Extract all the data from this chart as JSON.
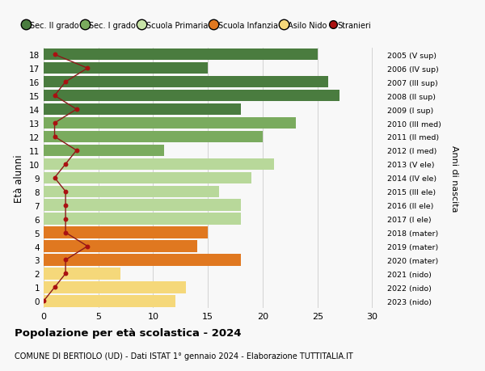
{
  "ages": [
    18,
    17,
    16,
    15,
    14,
    13,
    12,
    11,
    10,
    9,
    8,
    7,
    6,
    5,
    4,
    3,
    2,
    1,
    0
  ],
  "right_labels": [
    "2005 (V sup)",
    "2006 (IV sup)",
    "2007 (III sup)",
    "2008 (II sup)",
    "2009 (I sup)",
    "2010 (III med)",
    "2011 (II med)",
    "2012 (I med)",
    "2013 (V ele)",
    "2014 (IV ele)",
    "2015 (III ele)",
    "2016 (II ele)",
    "2017 (I ele)",
    "2018 (mater)",
    "2019 (mater)",
    "2020 (mater)",
    "2021 (nido)",
    "2022 (nido)",
    "2023 (nido)"
  ],
  "bar_values": [
    25,
    15,
    26,
    27,
    18,
    23,
    20,
    11,
    21,
    19,
    16,
    18,
    18,
    15,
    14,
    18,
    7,
    13,
    12
  ],
  "bar_colors": [
    "#4a7c3f",
    "#4a7c3f",
    "#4a7c3f",
    "#4a7c3f",
    "#4a7c3f",
    "#7aab5e",
    "#7aab5e",
    "#7aab5e",
    "#b8d89a",
    "#b8d89a",
    "#b8d89a",
    "#b8d89a",
    "#b8d89a",
    "#e07820",
    "#e07820",
    "#e07820",
    "#f5d87a",
    "#f5d87a",
    "#f5d87a"
  ],
  "stranieri_values": [
    1,
    4,
    2,
    1,
    3,
    1,
    1,
    3,
    2,
    1,
    2,
    2,
    2,
    2,
    4,
    2,
    2,
    1,
    0
  ],
  "legend_labels": [
    "Sec. II grado",
    "Sec. I grado",
    "Scuola Primaria",
    "Scuola Infanzia",
    "Asilo Nido",
    "Stranieri"
  ],
  "legend_colors": [
    "#4a7c3f",
    "#7aab5e",
    "#c8e4a8",
    "#e07820",
    "#f5d87a",
    "#aa1111"
  ],
  "ylabel": "Età alunni",
  "right_ylabel": "Anni di nascita",
  "title": "Popolazione per età scolastica - 2024",
  "subtitle": "COMUNE DI BERTIOLO (UD) - Dati ISTAT 1° gennaio 2024 - Elaborazione TUTTITALIA.IT",
  "bg_color": "#f8f8f8",
  "grid_color": "#cccccc"
}
